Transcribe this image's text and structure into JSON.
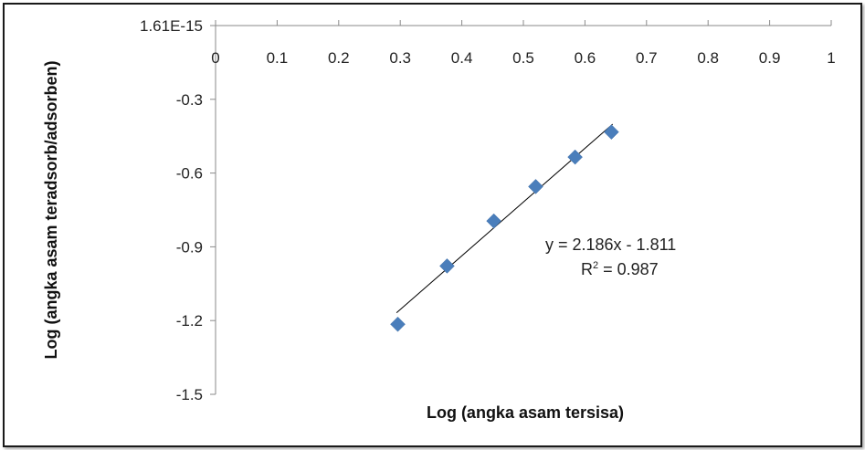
{
  "chart_data": {
    "type": "scatter",
    "xlabel": "Log (angka asam tersisa)",
    "ylabel": "Log (angka asam teradsorb/adsorben)",
    "x_ticks": [
      "0",
      "0.1",
      "0.2",
      "0.3",
      "0.4",
      "0.5",
      "0.6",
      "0.7",
      "0.8",
      "0.9",
      "1"
    ],
    "y_ticks": [
      "1.61E-15",
      "-0.3",
      "-0.6",
      "-0.9",
      "-1.2",
      "-1.5"
    ],
    "xlim": [
      0,
      1
    ],
    "ylim": [
      -1.5,
      0
    ],
    "series": [
      {
        "x": [
          0.296,
          0.376,
          0.452,
          0.52,
          0.584,
          0.643
        ],
        "y": [
          -1.215,
          -0.978,
          -0.795,
          -0.655,
          -0.535,
          -0.433
        ],
        "color": "#4a7ebb",
        "marker": "diamond"
      }
    ],
    "trendline": {
      "slope": 2.186,
      "intercept": -1.811,
      "x_range": [
        0.294,
        0.645
      ],
      "color": "#000000"
    },
    "annotation": {
      "equation": "y = 2.186x - 1.811",
      "r2_prefix": "R",
      "r2_sup": "2",
      "r2_value": " = 0.987"
    }
  }
}
